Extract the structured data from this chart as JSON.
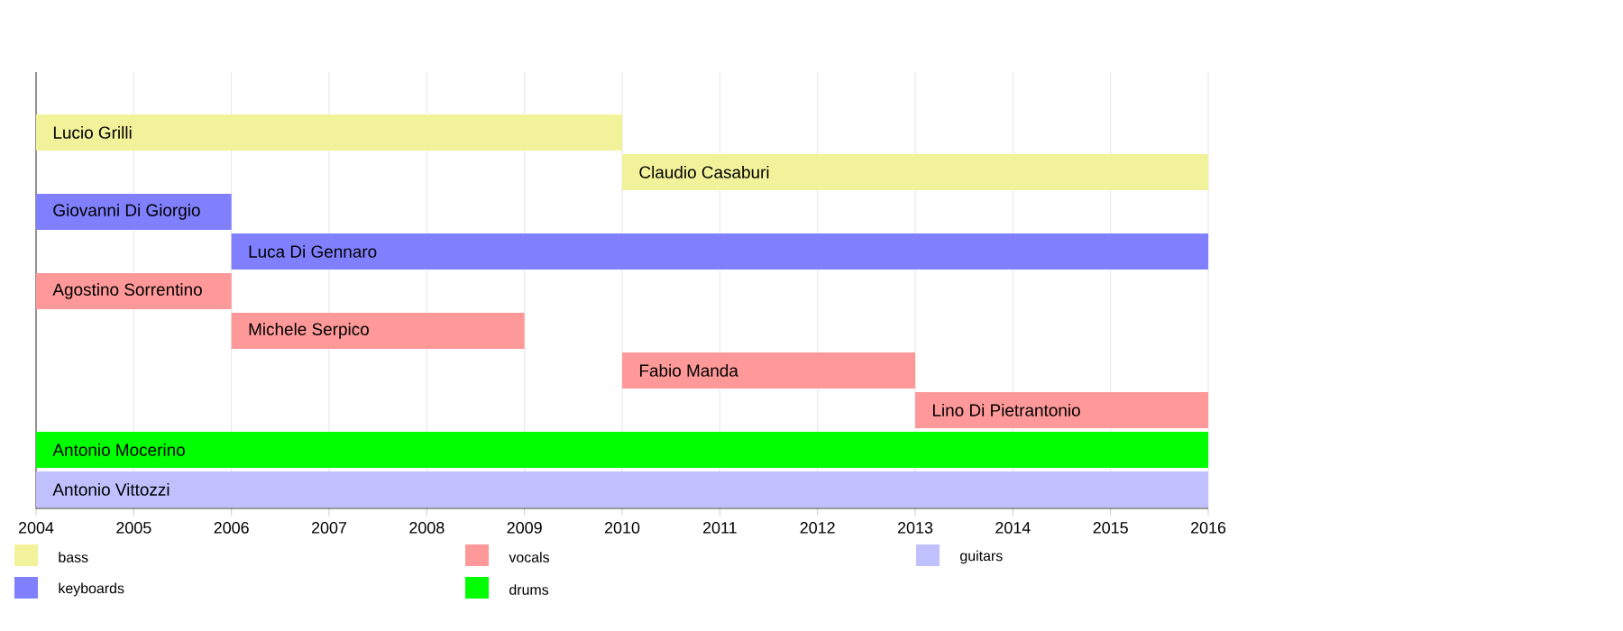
{
  "chart_data": {
    "type": "bar",
    "orientation": "horizontal",
    "categories": [
      "Lucio Grilli",
      "Claudio Casaburi",
      "Giovanni Di Giorgio",
      "Luca Di Gennaro",
      "Agostino Sorrentino",
      "Michele Serpico",
      "Fabio Manda",
      "Lino Di Pietrantonio",
      "Antonio Mocerino",
      "Antonio Vittozzi"
    ],
    "series": [
      {
        "name": "bass",
        "color": "#f2f29b",
        "base": [
          2004,
          2010,
          null,
          null,
          null,
          null,
          null,
          null,
          null,
          null
        ],
        "values": [
          6,
          6,
          null,
          null,
          null,
          null,
          null,
          null,
          null,
          null
        ]
      },
      {
        "name": "keyboards",
        "color": "#8080ff",
        "base": [
          null,
          null,
          2004,
          2006,
          null,
          null,
          null,
          null,
          null,
          null
        ],
        "values": [
          null,
          null,
          2,
          10,
          null,
          null,
          null,
          null,
          null,
          null
        ]
      },
      {
        "name": "vocals",
        "color": "#ff9999",
        "base": [
          null,
          null,
          null,
          null,
          2004,
          2006,
          2010,
          2013,
          null,
          null
        ],
        "values": [
          null,
          null,
          null,
          null,
          2,
          3,
          3,
          3,
          null,
          null
        ]
      },
      {
        "name": "drums",
        "color": "#00ff00",
        "base": [
          null,
          null,
          null,
          null,
          null,
          null,
          null,
          null,
          2004,
          null
        ],
        "values": [
          null,
          null,
          null,
          null,
          null,
          null,
          null,
          null,
          12,
          null
        ]
      },
      {
        "name": "guitars",
        "color": "#c0c0ff",
        "base": [
          null,
          null,
          null,
          null,
          null,
          null,
          null,
          null,
          null,
          2004
        ],
        "values": [
          null,
          null,
          null,
          null,
          null,
          null,
          null,
          null,
          null,
          12
        ]
      }
    ],
    "xlim": [
      2004,
      2016
    ],
    "xticks": [
      2004,
      2005,
      2006,
      2007,
      2008,
      2009,
      2010,
      2011,
      2012,
      2013,
      2014,
      2015,
      2016
    ],
    "grid": "x",
    "legend": "bottom"
  }
}
